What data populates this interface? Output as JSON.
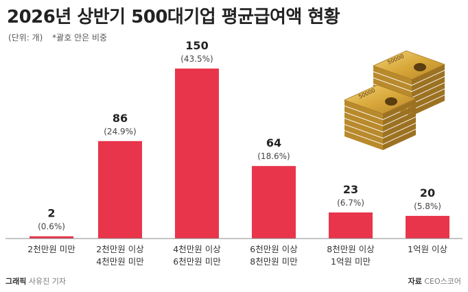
{
  "header": {
    "title": "2026년 상반기 500대기업 평균급여액 현황",
    "unit_note": "(단위: 개)",
    "share_note": "*괄호 안은 비중"
  },
  "footer": {
    "credit_label": "그래픽",
    "credit_name": "사유진 기자",
    "source_label": "자료",
    "source_name": "CEO스코어"
  },
  "illustration": {
    "banknote_value": "50000"
  },
  "colors": {
    "bar": "#e8354b",
    "baseline": "#888888",
    "gold": "#d4a017"
  },
  "chart_data": {
    "type": "bar",
    "title": "2026년 상반기 500대기업 평균급여액 현황",
    "xlabel": "",
    "ylabel": "",
    "ylim": [
      0,
      150
    ],
    "grid": false,
    "legend": "none",
    "categories": [
      [
        "2천만원 미만"
      ],
      [
        "2천만원 이상",
        "4천만원 미만"
      ],
      [
        "4천만원 이상",
        "6천만원 미만"
      ],
      [
        "6천만원 이상",
        "8천만원 미만"
      ],
      [
        "8천만원 이상",
        "1억원 미만"
      ],
      [
        "1억원 이상"
      ]
    ],
    "values": [
      2,
      86,
      150,
      64,
      23,
      20
    ],
    "value_labels": [
      "2",
      "86",
      "150",
      "64",
      "23",
      "20"
    ],
    "share_labels": [
      "(0.6%)",
      "(24.9%)",
      "(43.5%)",
      "(18.6%)",
      "(6.7%)",
      "(5.8%)"
    ]
  }
}
